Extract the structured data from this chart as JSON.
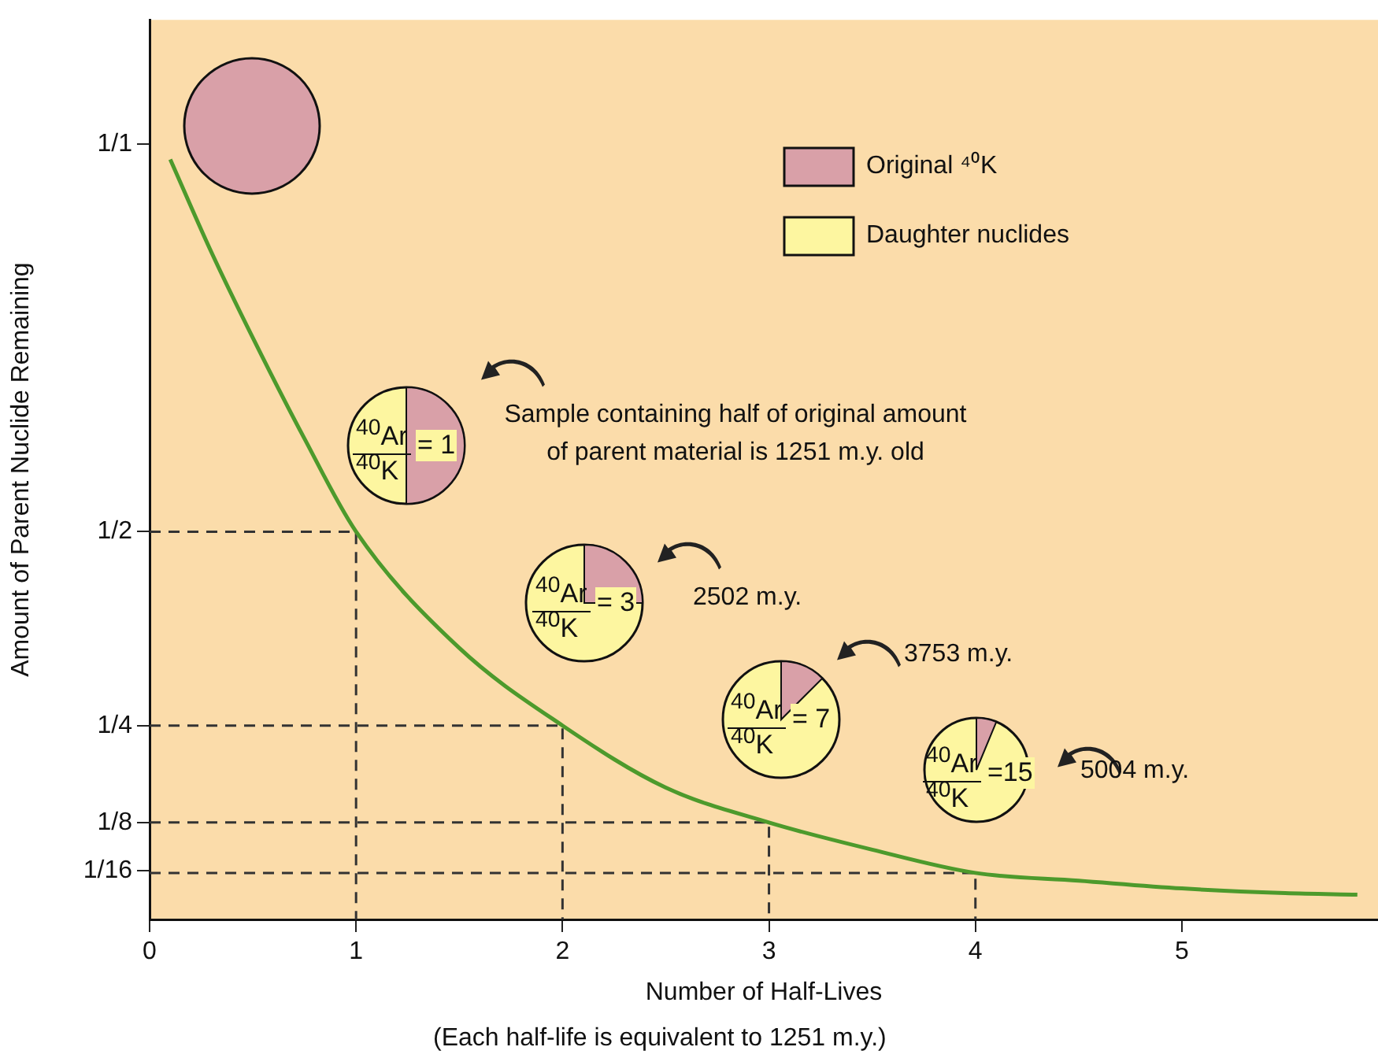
{
  "chart_data": {
    "type": "line",
    "xlabel": "Number of Half-Lives",
    "ylabel": "Amount of Parent Nuclide Remaining",
    "xlim": [
      0,
      5.95
    ],
    "xticks": [
      0,
      1,
      2,
      3,
      4,
      5
    ],
    "ylim": [
      0,
      1.16
    ],
    "yticks": [
      {
        "value": 1,
        "label": "1/1"
      },
      {
        "value": 0.5,
        "label": "1/2"
      },
      {
        "value": 0.25,
        "label": "1/4"
      },
      {
        "value": 0.125,
        "label": "1/8"
      },
      {
        "value": 0.0625,
        "label": "1/16"
      }
    ],
    "grid": false,
    "legend": false,
    "marker": "none",
    "series": [
      {
        "color": "#4d9a2c",
        "x": [
          0.1,
          0.3,
          0.5,
          0.75,
          1,
          1.5,
          2,
          2.5,
          3,
          3.5,
          4,
          4.5,
          5,
          5.5,
          5.85
        ],
        "values": [
          0.98,
          0.86,
          0.75,
          0.62,
          0.5,
          0.35,
          0.25,
          0.17,
          0.125,
          0.09,
          0.06,
          0.05,
          0.04,
          0.034,
          0.032
        ]
      },
      {
        "color": "#333333",
        "line_style": "dashed",
        "x": [
          0,
          1,
          1
        ],
        "values": [
          0.5,
          0.5,
          0
        ]
      },
      {
        "color": "#333333",
        "line_style": "dashed",
        "x": [
          0,
          2,
          2
        ],
        "values": [
          0.25,
          0.25,
          0
        ]
      },
      {
        "color": "#333333",
        "line_style": "dashed",
        "x": [
          0,
          3,
          3
        ],
        "values": [
          0.125,
          0.125,
          0
        ]
      },
      {
        "color": "#333333",
        "line_style": "dashed",
        "x": [
          0,
          4,
          4
        ],
        "values": [
          0.06,
          0.06,
          0
        ]
      }
    ],
    "annotations": [
      "Original ⁴⁰K",
      "Daughter nuclides",
      "Sample containing half of original amount of parent material is 1251 m.y. old",
      "2502 m.y.",
      "3753 m.y.",
      "5004 m.y.",
      "$^{40}$Ar",
      "$^{40}$K",
      "= 1",
      "$^{40}$Ar",
      "$^{40}$K",
      "= 3",
      "$^{40}$Ar",
      "$^{40}$K",
      "= 7",
      "$^{40}$Ar",
      "$^{40}$K",
      "=15",
      "(Each half-life is equivalent to 1251 m.y.)"
    ]
  }
}
